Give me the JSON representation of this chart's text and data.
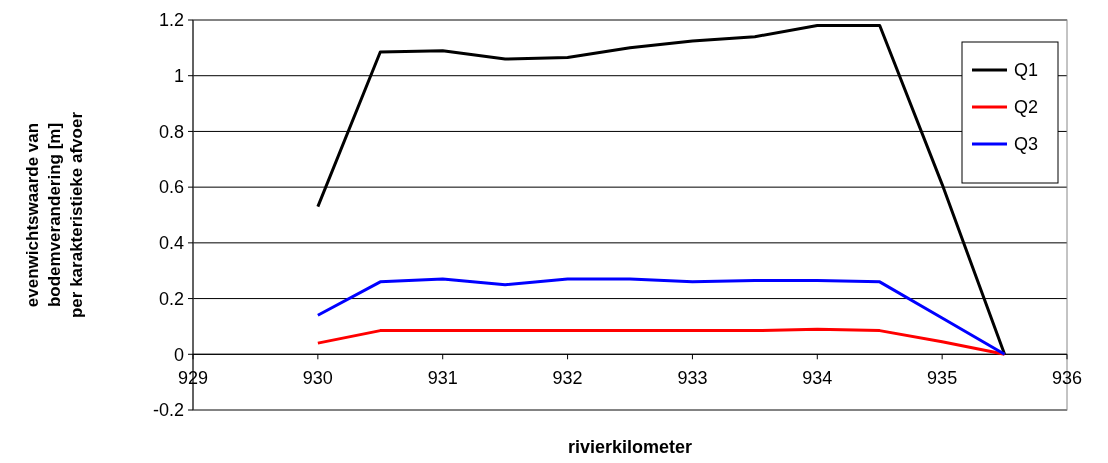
{
  "chart_data": {
    "type": "line",
    "xlabel": "rivierkilometer",
    "ylabel": "evenwichtswaarde van\nbodemverandering [m]\nper karakteristieke afvoer",
    "x": [
      930,
      930.5,
      931,
      931.5,
      932,
      932.5,
      933,
      933.5,
      934,
      934.5,
      935,
      935.5
    ],
    "series": [
      {
        "name": "Q1",
        "color": "#000000",
        "values": [
          0.53,
          1.085,
          1.09,
          1.06,
          1.065,
          1.1,
          1.125,
          1.14,
          1.18,
          1.18,
          0.61,
          0
        ]
      },
      {
        "name": "Q2",
        "color": "#ff0000",
        "values": [
          0.04,
          0.085,
          0.085,
          0.085,
          0.085,
          0.085,
          0.085,
          0.085,
          0.09,
          0.085,
          0.045,
          0
        ]
      },
      {
        "name": "Q3",
        "color": "#0000ff",
        "values": [
          0.14,
          0.26,
          0.27,
          0.25,
          0.27,
          0.27,
          0.26,
          0.265,
          0.265,
          0.26,
          0.13,
          0
        ]
      }
    ],
    "xlim": [
      929,
      936
    ],
    "xticks": [
      929,
      930,
      931,
      932,
      933,
      934,
      935,
      936
    ],
    "ylim": [
      -0.2,
      1.2
    ],
    "yticks": [
      -0.2,
      0,
      0.2,
      0.4,
      0.6,
      0.8,
      1,
      1.2
    ],
    "grid": "y",
    "legend": "top right",
    "marker": "none",
    "line_style": "solid"
  }
}
